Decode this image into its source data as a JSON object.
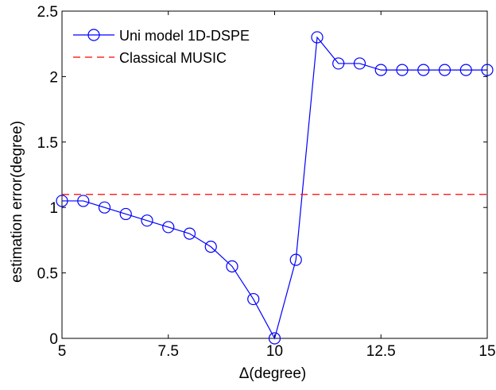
{
  "chart_data": {
    "type": "line",
    "xlabel": "Δ(degree)",
    "ylabel": "estimation error(degree)",
    "xlim": [
      5,
      15
    ],
    "ylim": [
      0,
      2.5
    ],
    "xticks": [
      "5",
      "7.5",
      "10",
      "12.5",
      "15"
    ],
    "yticks": [
      "0",
      "0.5",
      "1",
      "1.5",
      "2",
      "2.5"
    ],
    "grid": false,
    "legend_position": "top-left",
    "series": [
      {
        "name": "Uni model 1D-DSPE",
        "color": "#0000ff",
        "line_style": "solid",
        "marker": "circle",
        "x": [
          5,
          5.5,
          6,
          6.5,
          7,
          7.5,
          8,
          8.5,
          9,
          9.5,
          10,
          10.5,
          11,
          11.5,
          12,
          12.5,
          13,
          13.5,
          14,
          14.5,
          15
        ],
        "y": [
          1.05,
          1.05,
          1.0,
          0.95,
          0.9,
          0.85,
          0.8,
          0.7,
          0.55,
          0.3,
          0.0,
          0.6,
          2.3,
          2.1,
          2.1,
          2.05,
          2.05,
          2.05,
          2.05,
          2.05,
          2.05
        ]
      },
      {
        "name": "Classical MUSIC",
        "color": "#ff0000",
        "line_style": "dashed",
        "marker": "none",
        "x": [
          5,
          15
        ],
        "y": [
          1.1,
          1.1
        ]
      }
    ]
  }
}
